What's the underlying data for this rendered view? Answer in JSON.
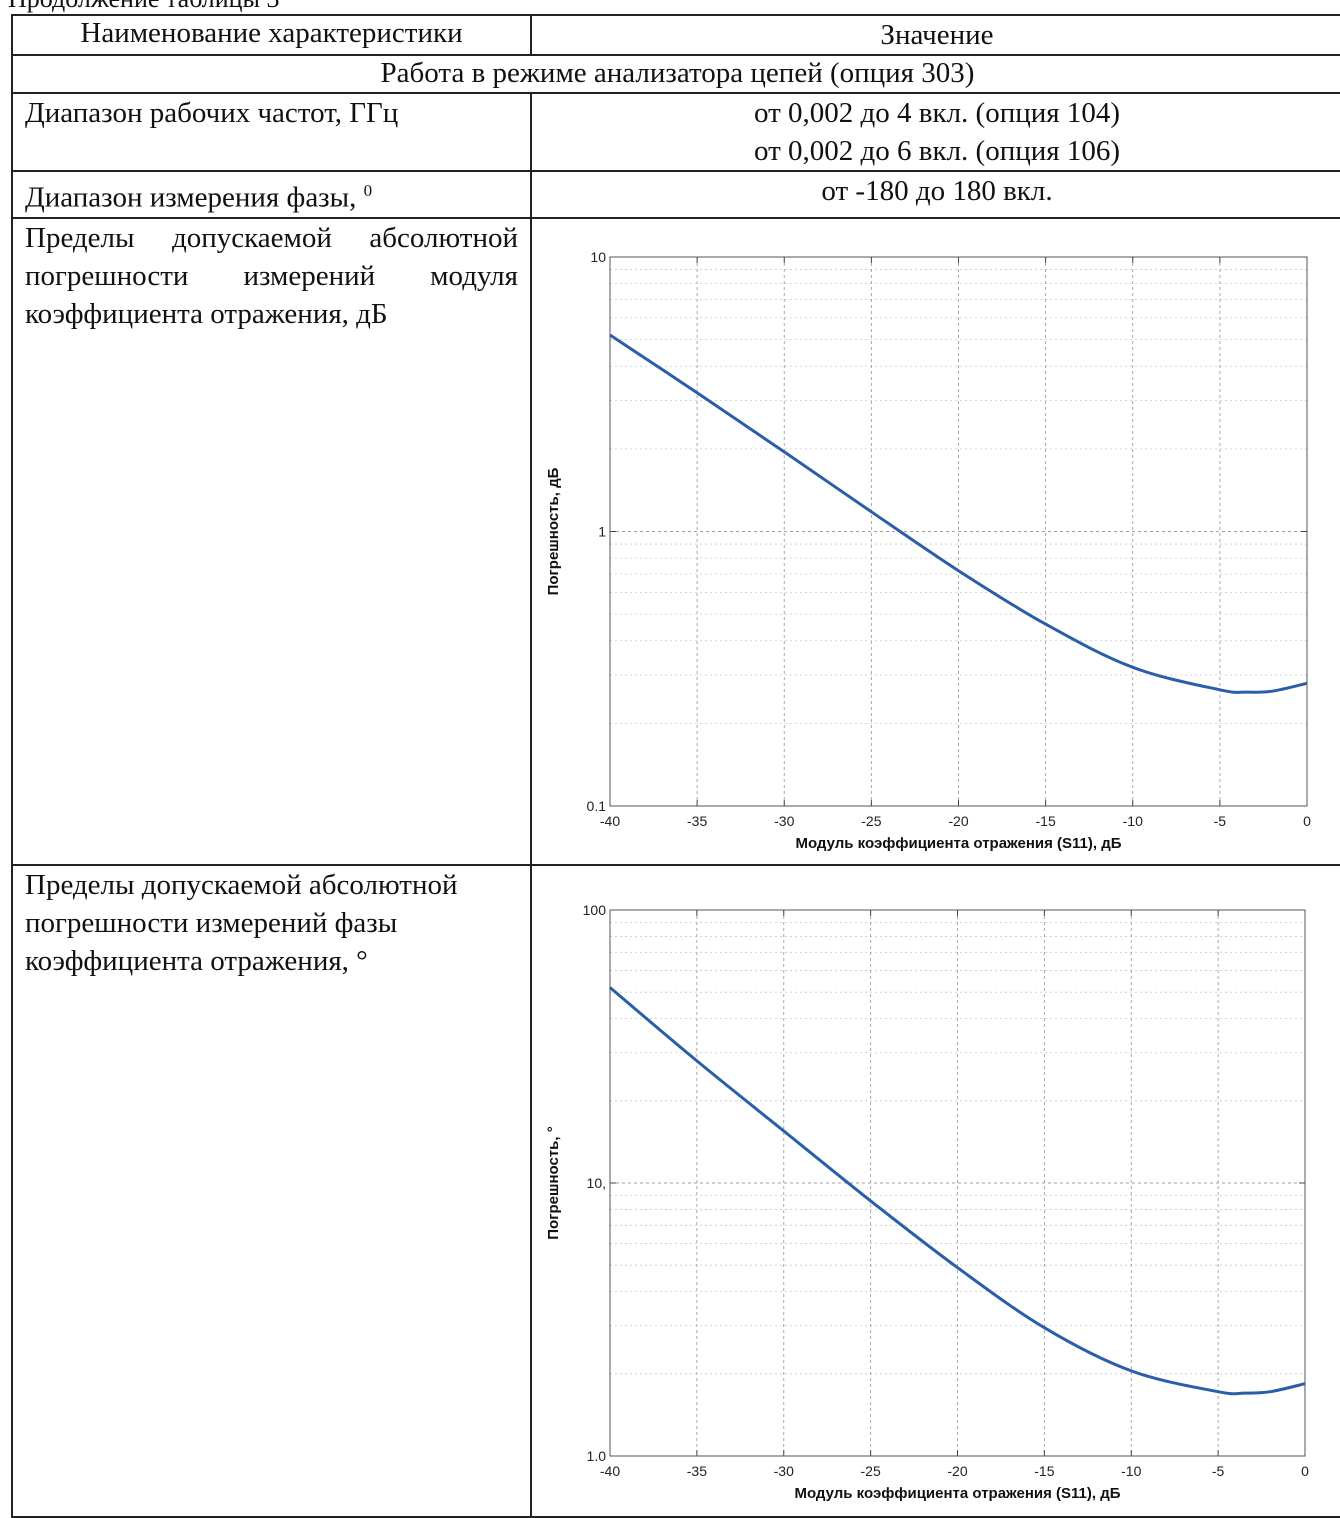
{
  "caption": "Продолжение таблицы 3",
  "header": {
    "col1": "Наименование характеристики",
    "col2": "Значение"
  },
  "section_title": "Работа в режиме анализатора цепей (опция 303)",
  "rows": [
    {
      "label": "Диапазон рабочих частот, ГГц",
      "values": [
        "от 0,002 до 4 вкл. (опция 104)",
        "от 0,002 до 6 вкл. (опция 106)"
      ]
    },
    {
      "label": "Диапазон измерения фазы,",
      "label_sup": "0",
      "values": [
        "от -180 до 180 вкл."
      ]
    },
    {
      "label": "Пределы допускаемой абсолютной погрешности измерений модуля коэффициента отражения, дБ"
    },
    {
      "label": "Пределы допускаемой абсолютной погрешности измерений фазы коэффициента отражения, °"
    }
  ],
  "chart_data": [
    {
      "type": "line",
      "xlabel": "Модуль коэффициента отражения (S11), дБ",
      "ylabel": "Погрешность, дБ",
      "yscale": "log",
      "xlim": [
        -40,
        0
      ],
      "ylim": [
        0.1,
        10
      ],
      "xticks": [
        "-40",
        "-35",
        "-30",
        "-25",
        "-20",
        "-15",
        "-10",
        "-5",
        "0"
      ],
      "yticks": [
        "0.1",
        "1",
        "10"
      ],
      "grid": true,
      "line_color": "#2a5ea8",
      "x": [
        -40,
        -35,
        -30,
        -25,
        -20,
        -15,
        -10,
        -5,
        -3.5,
        -2,
        0
      ],
      "y": [
        5.2,
        3.2,
        1.95,
        1.18,
        0.72,
        0.46,
        0.32,
        0.265,
        0.26,
        0.262,
        0.28
      ]
    },
    {
      "type": "line",
      "xlabel": "Модуль коэффициента отражения (S11), дБ",
      "ylabel": "Погрешность, °",
      "yscale": "log",
      "xlim": [
        -40,
        0
      ],
      "ylim": [
        1,
        100
      ],
      "xticks": [
        "-40",
        "-35",
        "-30",
        "-25",
        "-20",
        "-15",
        "-10",
        "-5",
        "0"
      ],
      "yticks": [
        "1.0",
        "10,",
        "100"
      ],
      "grid": true,
      "line_color": "#2a5ea8",
      "x": [
        -40,
        -35,
        -30,
        -25,
        -20,
        -15,
        -10,
        -5,
        -3.5,
        -2,
        0
      ],
      "y": [
        52,
        28,
        15.5,
        8.6,
        4.9,
        2.95,
        2.05,
        1.72,
        1.7,
        1.72,
        1.84
      ]
    }
  ]
}
